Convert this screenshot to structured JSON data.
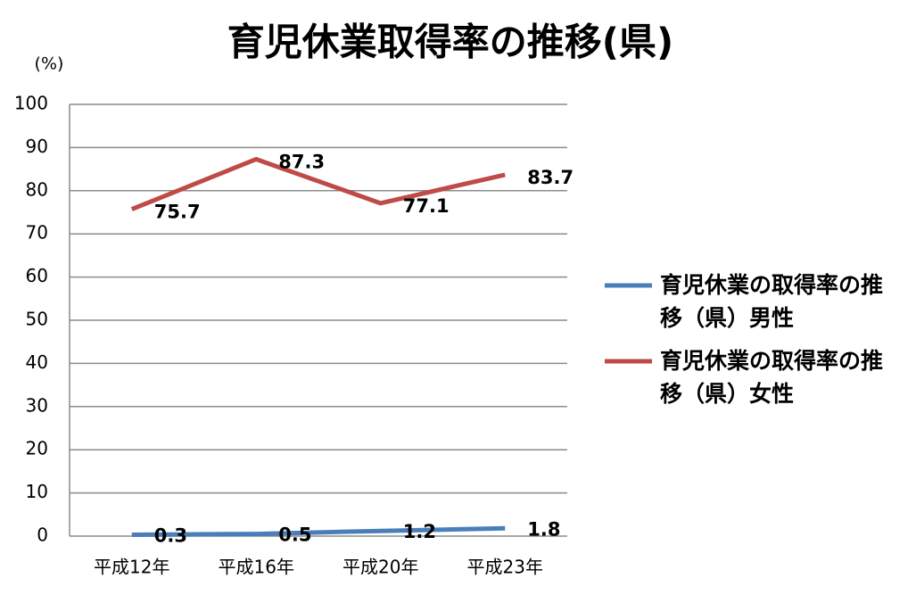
{
  "chart_data": {
    "type": "line",
    "title": "育児休業取得率の推移(県)",
    "y_unit": "(%)",
    "categories": [
      "平成12年",
      "平成16年",
      "平成20年",
      "平成23年"
    ],
    "series": [
      {
        "name": "育児休業の取得率の推移（県）男性",
        "color": "#4a7ebb",
        "values": [
          0.3,
          0.5,
          1.2,
          1.8
        ]
      },
      {
        "name": "育児休業の取得率の推移（県）女性",
        "color": "#be4b48",
        "values": [
          75.7,
          87.3,
          77.1,
          83.7
        ]
      }
    ],
    "ylim": [
      0,
      100
    ],
    "yticks": [
      0,
      10,
      20,
      30,
      40,
      50,
      60,
      70,
      80,
      90,
      100
    ],
    "grid": true,
    "legend": "right"
  }
}
